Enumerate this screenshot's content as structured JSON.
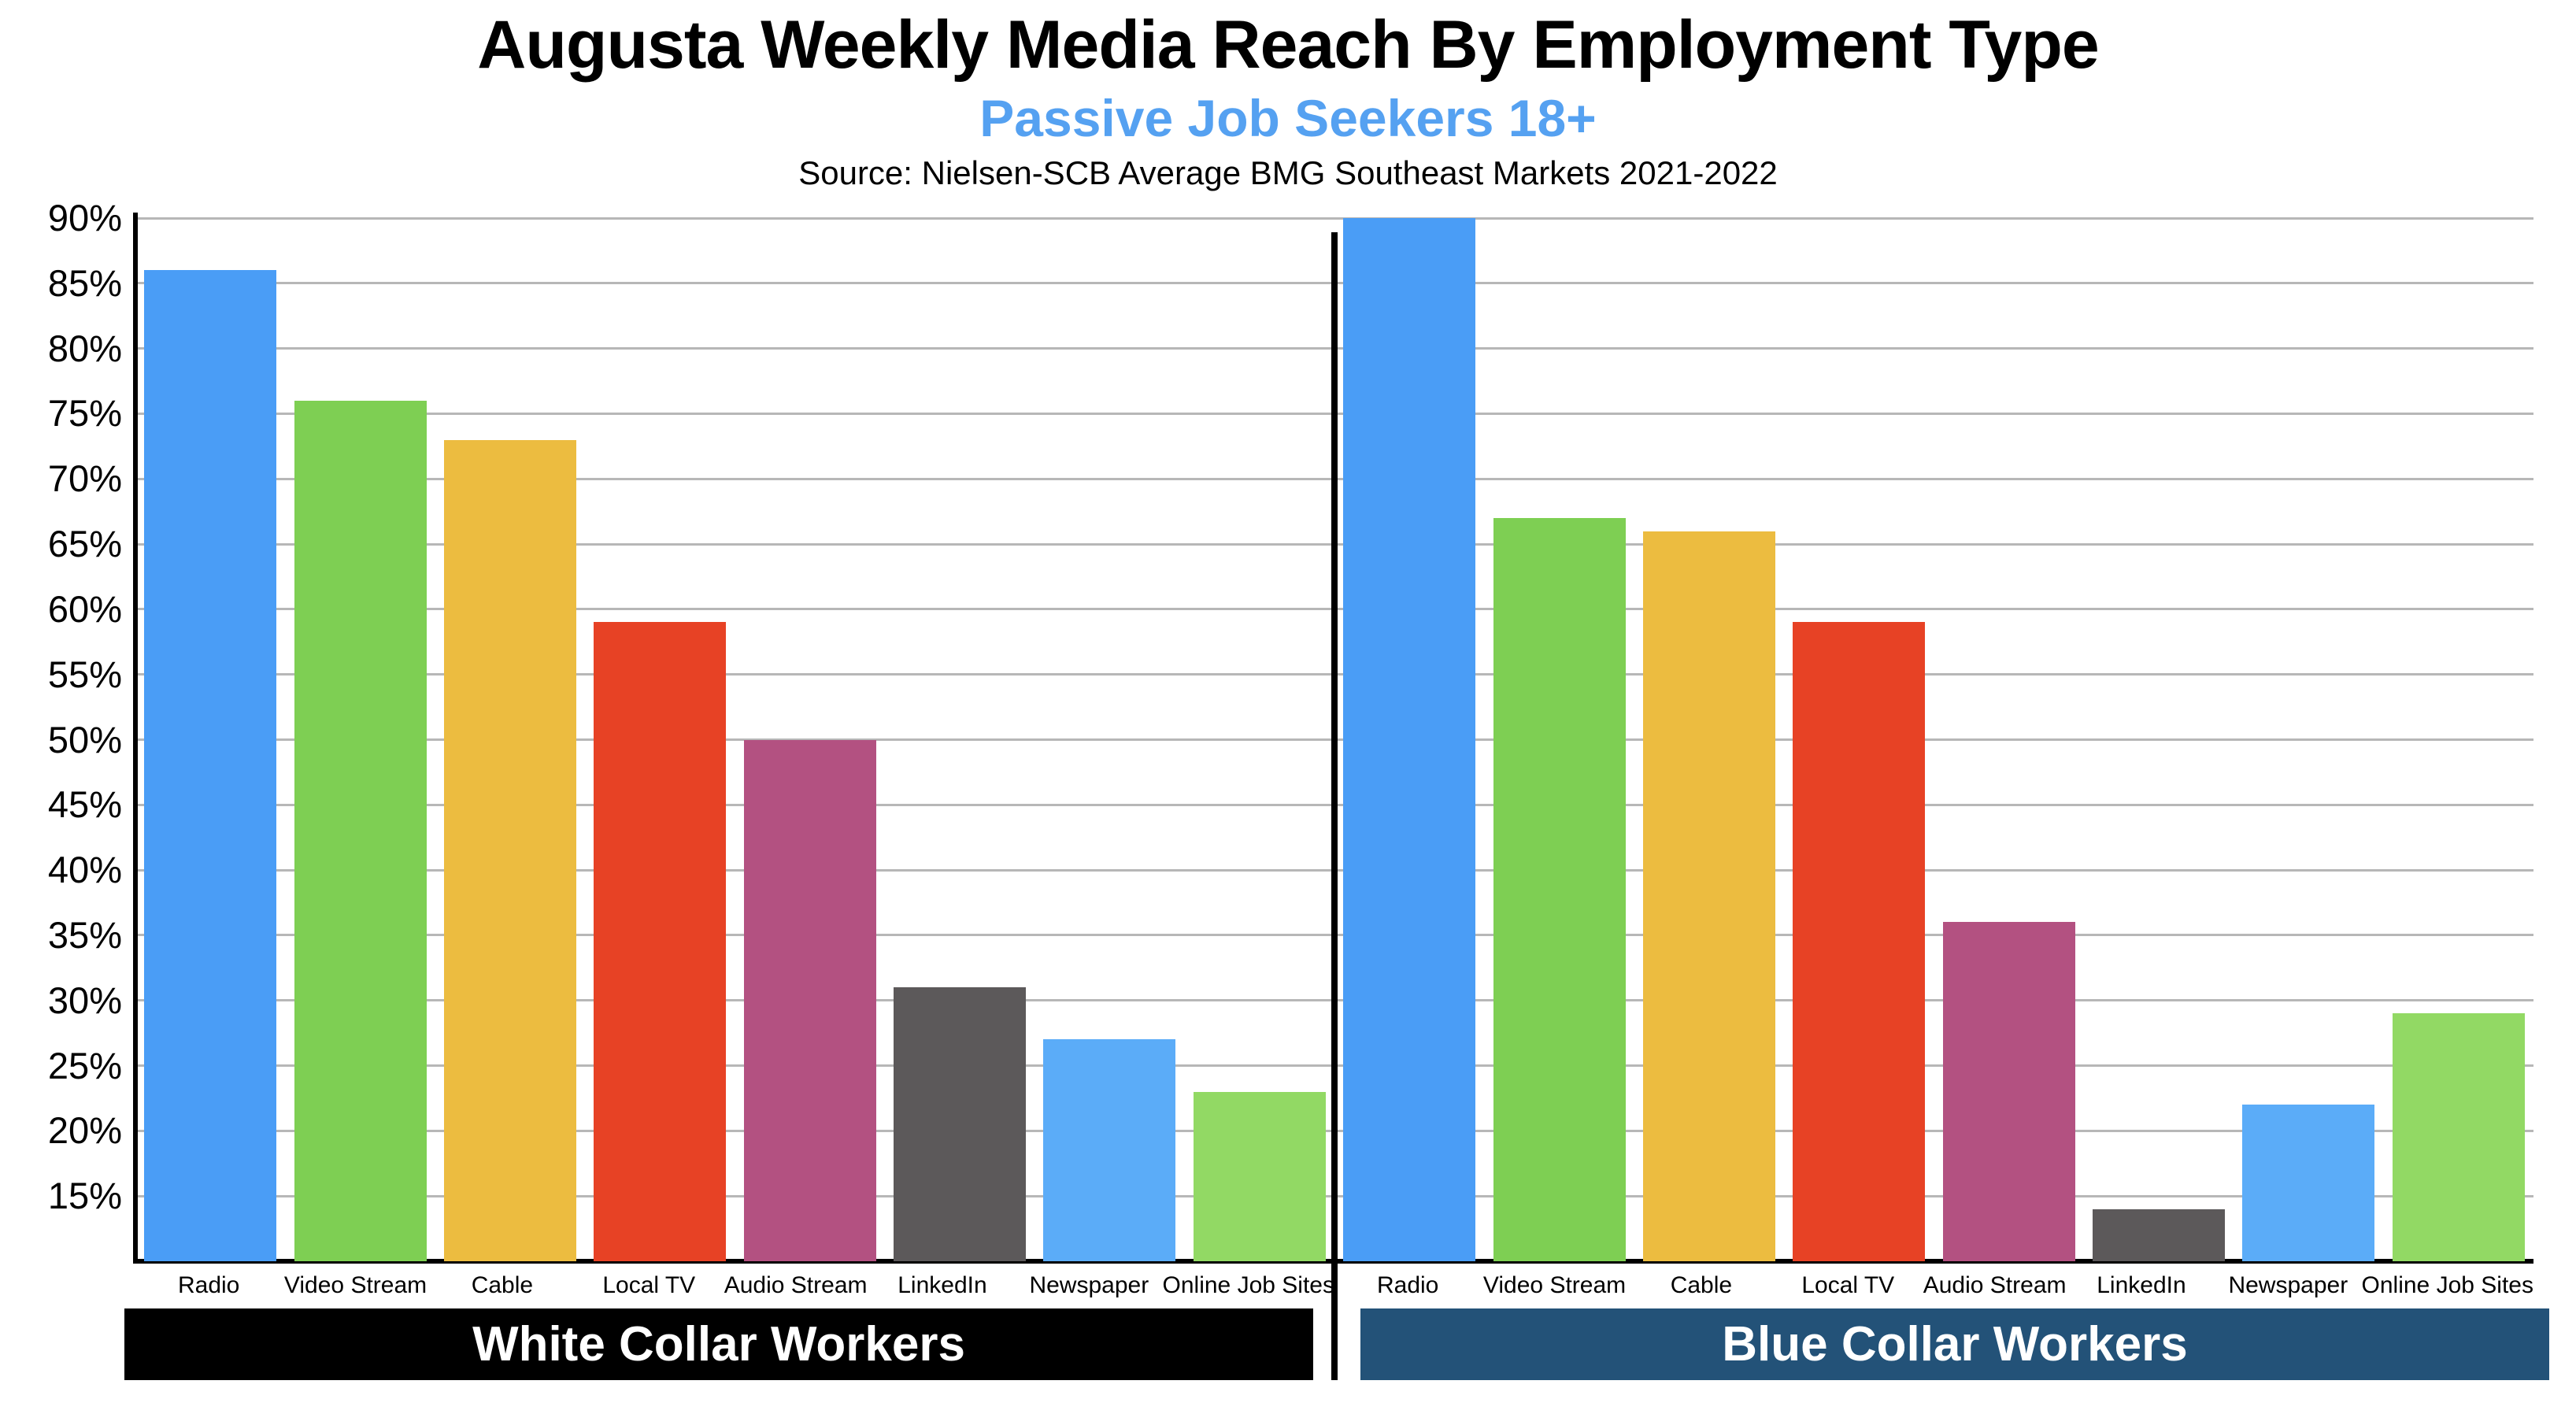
{
  "header": {
    "title": "Augusta Weekly Media Reach By Employment Type",
    "subtitle": "Passive Job Seekers 18+",
    "source": "Source: Nielsen-SCB Average BMG Southeast Markets 2021-2022"
  },
  "chart_data": {
    "type": "bar",
    "title": "Augusta Weekly Media Reach By Employment Type",
    "subtitle": "Passive Job Seekers 18+",
    "categories": [
      "Radio",
      "Video Stream",
      "Cable",
      "Local TV",
      "Audio Stream",
      "LinkedIn",
      "Newspaper",
      "Online Job Sites"
    ],
    "series": [
      {
        "name": "White Collar Workers",
        "values": [
          86,
          76,
          73,
          59,
          50,
          31,
          27,
          23
        ]
      },
      {
        "name": "Blue Collar Workers",
        "values": [
          90,
          67,
          66,
          59,
          36,
          14,
          22,
          29
        ]
      }
    ],
    "bar_colors": [
      "#4A9DF6",
      "#7ECF53",
      "#ECBC40",
      "#E74225",
      "#B35181",
      "#5C595A",
      "#5BACF8",
      "#92D964"
    ],
    "ylabel": "",
    "xlabel": "",
    "ylim": [
      10,
      90
    ],
    "yticks": [
      90,
      85,
      80,
      75,
      70,
      65,
      60,
      55,
      50,
      45,
      40,
      35,
      30,
      25,
      20,
      15
    ],
    "ytick_suffix": "%",
    "grid": true,
    "legend_position": "none",
    "panel_labels": [
      {
        "label": "White Collar Workers",
        "bg": "#000000",
        "text_color": "#ffffff"
      },
      {
        "label": "Blue Collar Workers",
        "bg": "#235278",
        "text_color": "#ffffff"
      }
    ]
  },
  "colors": {
    "subtitle": "#55A1F1",
    "gridline": "#B7B7B7",
    "axis": "#000000",
    "background": "#FFFFFF"
  }
}
